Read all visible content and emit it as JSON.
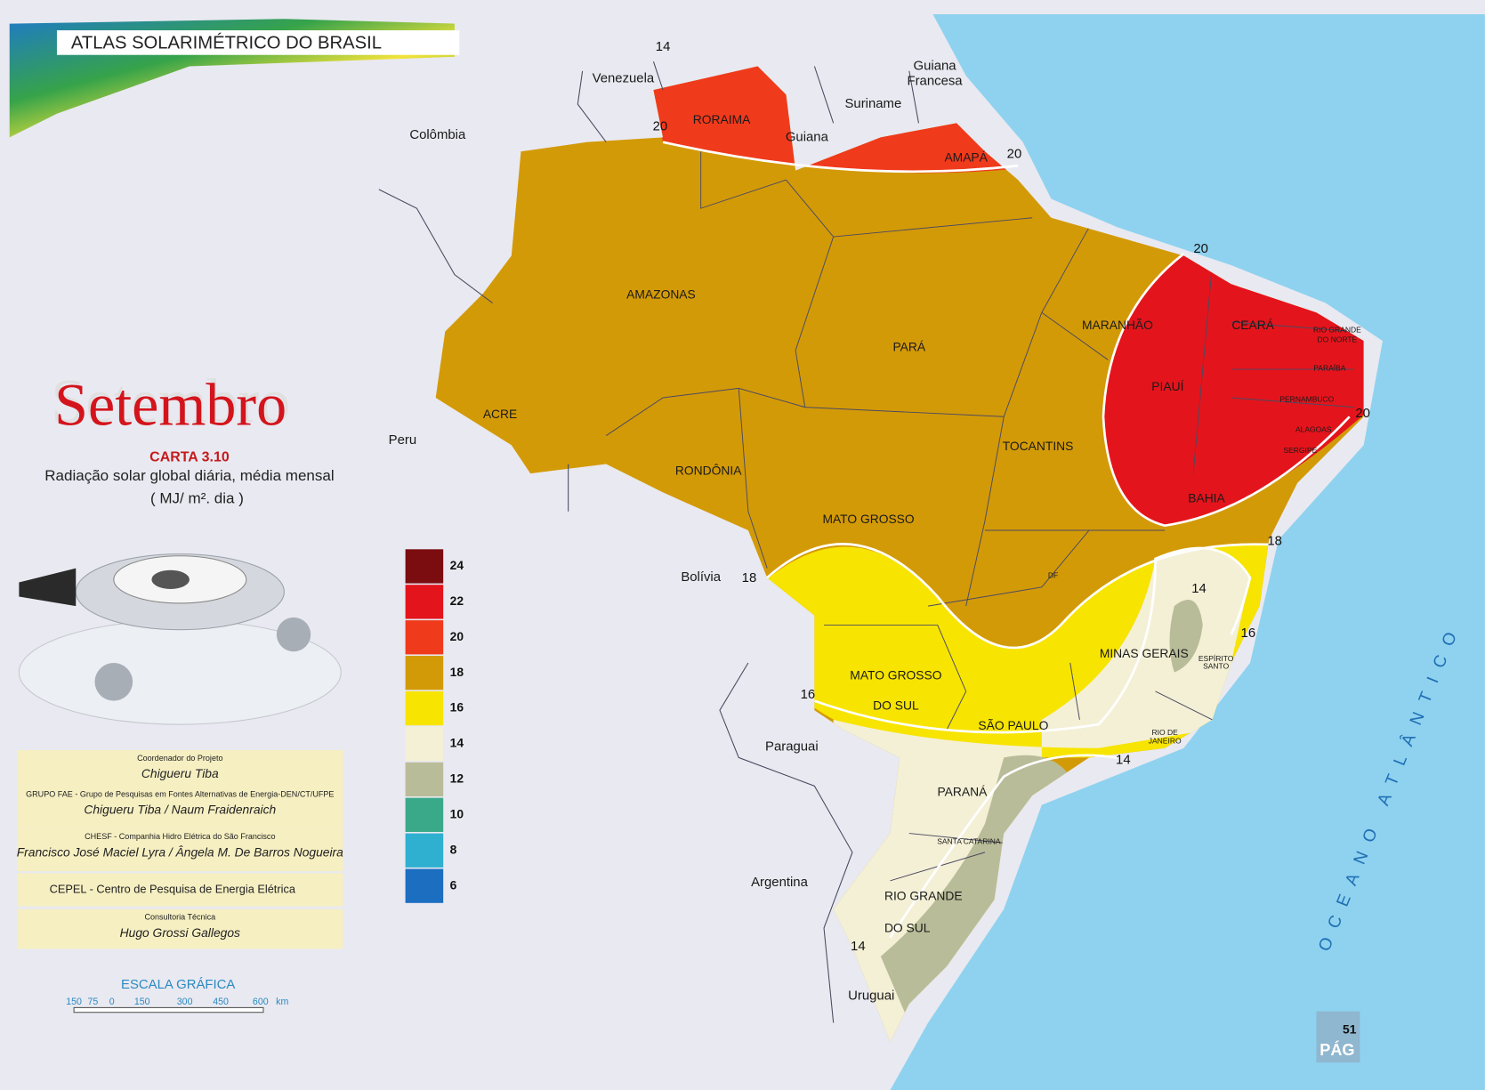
{
  "header": {
    "title": "ATLAS  SOLARIMÉTRICO DO  BRASIL"
  },
  "map_title": {
    "month": "Setembro",
    "chart_number": "CARTA 3.10",
    "description": "Radiação solar global diária, média mensal",
    "unit": "( MJ/ m². dia )"
  },
  "legend": {
    "items": [
      {
        "value": 24,
        "color": "#7b0d10"
      },
      {
        "value": 22,
        "color": "#e4141c"
      },
      {
        "value": 20,
        "color": "#f03a1c"
      },
      {
        "value": 18,
        "color": "#d39a08"
      },
      {
        "value": 16,
        "color": "#f7e400"
      },
      {
        "value": 14,
        "color": "#f4f0d6"
      },
      {
        "value": 12,
        "color": "#b9bc98"
      },
      {
        "value": 10,
        "color": "#3aa98a"
      },
      {
        "value": 8,
        "color": "#2fb0d0"
      },
      {
        "value": 6,
        "color": "#1c6ec0"
      }
    ]
  },
  "credits": [
    {
      "heading": "Coordenador do Projeto",
      "names": "Chigueru  Tiba"
    },
    {
      "heading": "GRUPO  FAE - Grupo de Pesquisas em Fontes Alternativas de Energia-DEN/CT/UFPE",
      "names": "Chigueru Tiba /   Naum  Fraidenraich"
    },
    {
      "heading": "CHESF  -  Companhia Hidro Elétrica do São Francisco",
      "names": "Francisco José Maciel Lyra / Ângela M. De Barros Nogueira"
    },
    {
      "heading": "CEPEL - Centro de Pesquisa de Energia Elétrica"
    },
    {
      "heading": "Consultoria Técnica",
      "names": "Hugo  Grossi Gallegos"
    }
  ],
  "scale": {
    "title": "ESCALA  GRÁFICA",
    "ticks": [
      "150",
      "75",
      "0",
      "150",
      "300",
      "450",
      "600"
    ],
    "unit": "km"
  },
  "countries": [
    "Venezuela",
    "Guiana",
    "Francesa",
    "Suriname",
    "Guiana",
    "Colômbia",
    "Peru",
    "Bolívia",
    "Paraguai",
    "Argentina",
    "Uruguai"
  ],
  "states": [
    "RORAIMA",
    "AMAPÁ",
    "AMAZONAS",
    "PARÁ",
    "MARANHÃO",
    "CEARÁ",
    "RIO GRANDE",
    "DO NORTE",
    "PARAÍBA",
    "PIAUÍ",
    "PERNAMBUCO",
    "ALAGOAS",
    "SERGIPE",
    "ACRE",
    "TOCANTINS",
    "RONDÔNIA",
    "BAHIA",
    "MATO  GROSSO",
    "DF",
    "MINAS  GERAIS",
    "ESPÍRITO",
    "SANTO",
    "MATO  GROSSO",
    "DO  SUL",
    "SÃO  PAULO",
    "RIO DE",
    "JANEIRO",
    "PARANÁ",
    "SANTA CATARINA",
    "RIO GRANDE",
    "DO  SUL"
  ],
  "isoline_labels": [
    20,
    20,
    20,
    20,
    18,
    18,
    16,
    16,
    14,
    14,
    14,
    14
  ],
  "ocean": "OCEANO  ATLÂNTICO",
  "page": {
    "number": "51",
    "label": "PÁG"
  }
}
